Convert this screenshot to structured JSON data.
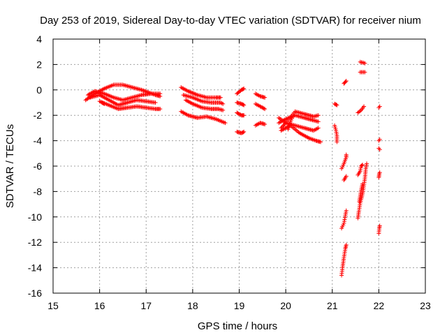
{
  "chart_data": {
    "type": "scatter",
    "title": "Day 253 of 2019, Sidereal Day-to-day VTEC variation (SDTVAR) for receiver nium",
    "xlabel": "GPS time / hours",
    "ylabel": "SDTVAR / TECUs",
    "xlim": [
      15,
      23
    ],
    "ylim": [
      -16,
      4
    ],
    "xticks": [
      "15",
      "16",
      "17",
      "18",
      "19",
      "20",
      "21",
      "22",
      "23"
    ],
    "yticks": [
      "4",
      "2",
      "0",
      "-2",
      "-4",
      "-6",
      "-8",
      "-10",
      "-12",
      "-14",
      "-16"
    ],
    "grid": true,
    "marker": "+",
    "color": "#ff0000",
    "tracks": [
      [
        [
          15.7,
          -0.8
        ],
        [
          15.9,
          -0.3
        ],
        [
          16.1,
          0.1
        ],
        [
          16.3,
          0.4
        ],
        [
          16.5,
          0.4
        ],
        [
          16.7,
          0.2
        ],
        [
          16.9,
          0.0
        ],
        [
          17.05,
          -0.2
        ],
        [
          17.2,
          -0.4
        ],
        [
          17.3,
          -0.5
        ]
      ],
      [
        [
          15.75,
          -0.4
        ],
        [
          15.9,
          -0.1
        ],
        [
          16.1,
          -0.3
        ],
        [
          16.3,
          -0.6
        ],
        [
          16.5,
          -0.8
        ],
        [
          16.7,
          -0.6
        ],
        [
          16.9,
          -0.4
        ],
        [
          17.1,
          -0.3
        ],
        [
          17.3,
          -0.3
        ]
      ],
      [
        [
          15.8,
          -0.6
        ],
        [
          16.0,
          -0.4
        ],
        [
          16.2,
          -0.8
        ],
        [
          16.4,
          -1.2
        ],
        [
          16.6,
          -1.0
        ],
        [
          16.8,
          -0.8
        ],
        [
          17.0,
          -0.9
        ],
        [
          17.2,
          -1.0
        ]
      ],
      [
        [
          16.0,
          -0.9
        ],
        [
          16.2,
          -1.2
        ],
        [
          16.4,
          -1.5
        ],
        [
          16.6,
          -1.4
        ],
        [
          16.8,
          -1.3
        ],
        [
          17.0,
          -1.4
        ],
        [
          17.2,
          -1.5
        ],
        [
          17.3,
          -1.5
        ]
      ],
      [
        [
          16.05,
          -1.0
        ],
        [
          16.1,
          -1.1
        ]
      ],
      [
        [
          17.75,
          0.2
        ],
        [
          17.9,
          -0.1
        ],
        [
          18.1,
          -0.4
        ],
        [
          18.3,
          -0.6
        ],
        [
          18.5,
          -0.6
        ],
        [
          18.6,
          -0.6
        ]
      ],
      [
        [
          17.8,
          -0.4
        ],
        [
          18.0,
          -0.6
        ],
        [
          18.2,
          -0.9
        ],
        [
          18.4,
          -1.0
        ],
        [
          18.6,
          -1.0
        ],
        [
          18.65,
          -1.1
        ]
      ],
      [
        [
          17.85,
          -0.8
        ],
        [
          18.0,
          -1.1
        ],
        [
          18.2,
          -1.4
        ],
        [
          18.4,
          -1.5
        ],
        [
          18.55,
          -1.5
        ],
        [
          18.65,
          -1.6
        ]
      ],
      [
        [
          17.75,
          -1.7
        ],
        [
          17.9,
          -2.0
        ],
        [
          18.1,
          -2.2
        ],
        [
          18.3,
          -2.1
        ],
        [
          18.5,
          -2.3
        ],
        [
          18.7,
          -2.6
        ]
      ],
      [
        [
          18.95,
          -0.3
        ],
        [
          19.05,
          0.0
        ],
        [
          19.1,
          0.1
        ]
      ],
      [
        [
          18.95,
          -1.0
        ],
        [
          19.05,
          -1.1
        ],
        [
          19.1,
          -1.2
        ]
      ],
      [
        [
          18.95,
          -1.8
        ],
        [
          19.05,
          -2.0
        ],
        [
          19.1,
          -2.0
        ]
      ],
      [
        [
          18.95,
          -3.3
        ],
        [
          19.05,
          -3.4
        ],
        [
          19.1,
          -3.3
        ]
      ],
      [
        [
          19.35,
          -0.3
        ],
        [
          19.45,
          -0.5
        ],
        [
          19.55,
          -0.6
        ]
      ],
      [
        [
          19.35,
          -1.1
        ],
        [
          19.45,
          -1.3
        ],
        [
          19.55,
          -1.5
        ]
      ],
      [
        [
          19.35,
          -2.8
        ],
        [
          19.45,
          -2.6
        ],
        [
          19.55,
          -2.7
        ]
      ],
      [
        [
          19.85,
          -2.2
        ],
        [
          20.0,
          -2.6
        ],
        [
          20.2,
          -2.8
        ],
        [
          20.4,
          -3.0
        ],
        [
          20.6,
          -3.2
        ],
        [
          20.7,
          -3.0
        ]
      ],
      [
        [
          19.85,
          -2.6
        ],
        [
          20.0,
          -2.3
        ],
        [
          20.2,
          -2.0
        ],
        [
          20.4,
          -2.2
        ],
        [
          20.6,
          -2.4
        ],
        [
          20.7,
          -2.5
        ]
      ],
      [
        [
          19.9,
          -3.0
        ],
        [
          20.0,
          -2.6
        ],
        [
          20.2,
          -1.7
        ],
        [
          20.4,
          -1.9
        ],
        [
          20.6,
          -2.1
        ],
        [
          20.7,
          -2.0
        ]
      ],
      [
        [
          19.9,
          -3.2
        ],
        [
          20.1,
          -2.8
        ],
        [
          20.3,
          -3.4
        ],
        [
          20.5,
          -3.8
        ],
        [
          20.65,
          -4.0
        ],
        [
          20.75,
          -4.1
        ]
      ],
      [
        [
          20.05,
          -3.1
        ],
        [
          20.1,
          -2.5
        ],
        [
          20.15,
          -2.1
        ]
      ],
      [
        [
          21.05,
          -1.1
        ],
        [
          21.1,
          -1.2
        ]
      ],
      [
        [
          21.05,
          -2.8
        ],
        [
          21.08,
          -3.2
        ],
        [
          21.1,
          -3.6
        ],
        [
          21.1,
          -4.1
        ]
      ],
      [
        [
          21.25,
          0.5
        ],
        [
          21.3,
          0.7
        ]
      ],
      [
        [
          21.2,
          -6.2
        ],
        [
          21.25,
          -5.8
        ],
        [
          21.3,
          -5.3
        ],
        [
          21.3,
          -5.1
        ]
      ],
      [
        [
          21.25,
          -7.1
        ],
        [
          21.3,
          -6.8
        ]
      ],
      [
        [
          21.2,
          -10.9
        ],
        [
          21.25,
          -10.5
        ],
        [
          21.28,
          -9.9
        ],
        [
          21.3,
          -9.5
        ]
      ],
      [
        [
          21.2,
          -14.6
        ],
        [
          21.22,
          -14.0
        ],
        [
          21.25,
          -13.2
        ],
        [
          21.28,
          -12.5
        ],
        [
          21.3,
          -12.2
        ]
      ],
      [
        [
          21.6,
          2.2
        ],
        [
          21.7,
          2.1
        ]
      ],
      [
        [
          21.6,
          1.4
        ],
        [
          21.7,
          1.4
        ]
      ],
      [
        [
          21.55,
          -1.8
        ],
        [
          21.62,
          -1.6
        ],
        [
          21.68,
          -1.3
        ]
      ],
      [
        [
          21.55,
          -6.7
        ],
        [
          21.6,
          -6.4
        ],
        [
          21.62,
          -6.0
        ],
        [
          21.65,
          -5.9
        ]
      ],
      [
        [
          21.55,
          -10.1
        ],
        [
          21.57,
          -9.6
        ],
        [
          21.6,
          -8.9
        ],
        [
          21.63,
          -8.5
        ],
        [
          21.66,
          -8.0
        ],
        [
          21.7,
          -7.0
        ],
        [
          21.72,
          -6.2
        ],
        [
          21.74,
          -5.8
        ]
      ],
      [
        [
          21.58,
          -8.8
        ],
        [
          21.62,
          -7.9
        ],
        [
          21.65,
          -7.4
        ]
      ],
      [
        [
          22.0,
          -1.4
        ],
        [
          22.02,
          -1.3
        ]
      ],
      [
        [
          22.0,
          -4.0
        ],
        [
          22.02,
          -3.9
        ]
      ],
      [
        [
          22.0,
          -4.6
        ],
        [
          22.02,
          -4.7
        ]
      ],
      [
        [
          22.0,
          -6.9
        ],
        [
          22.01,
          -6.6
        ],
        [
          22.02,
          -6.5
        ]
      ],
      [
        [
          22.0,
          -11.3
        ],
        [
          22.01,
          -10.9
        ],
        [
          22.02,
          -10.7
        ]
      ]
    ]
  }
}
